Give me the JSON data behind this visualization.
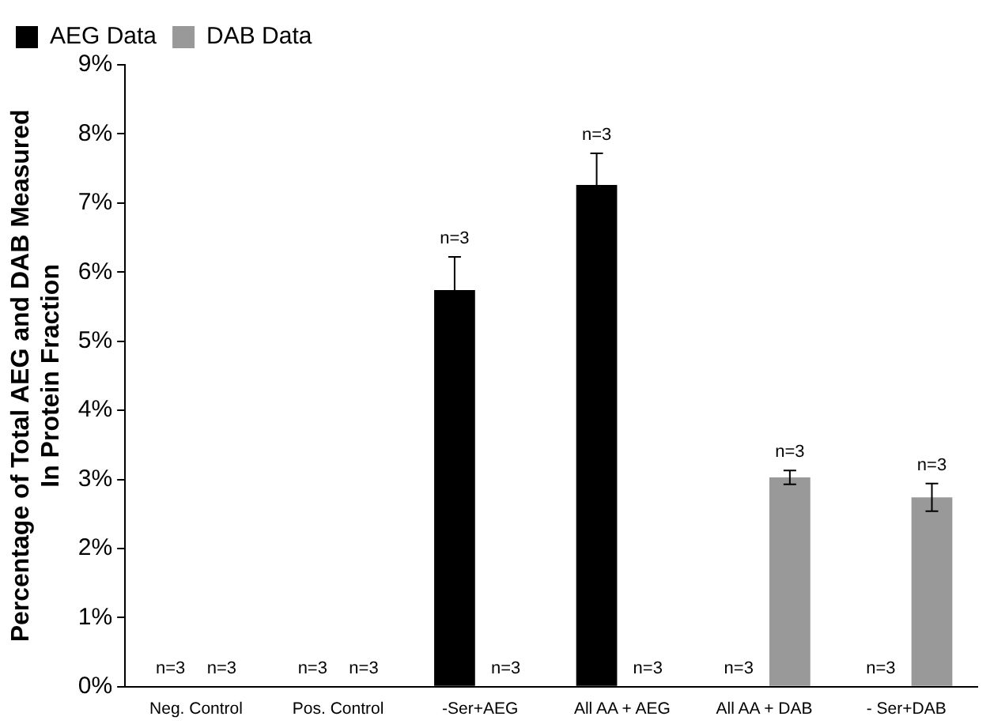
{
  "chart_data": {
    "type": "bar",
    "ylabel": "Percentage of Total AEG and DAB Measured\nIn Protein Fraction",
    "categories": [
      "Neg. Control",
      "Pos. Control",
      "-Ser+AEG",
      "All AA + AEG",
      "All AA + DAB",
      "- Ser+DAB"
    ],
    "series": [
      {
        "name": "AEG Data",
        "color": "#000000",
        "values": [
          0,
          0,
          5.74,
          7.26,
          0,
          0
        ],
        "errors": [
          null,
          null,
          0.48,
          0.46,
          null,
          null
        ]
      },
      {
        "name": "DAB Data",
        "color": "#999999",
        "values": [
          0,
          0,
          0,
          0,
          3.03,
          2.74
        ],
        "errors": [
          null,
          null,
          null,
          null,
          0.1,
          0.2
        ]
      }
    ],
    "annotations": [
      {
        "text": "n=3",
        "x": "Neg. Control",
        "y": 0
      },
      {
        "text": "n=3",
        "x": "Neg. Control",
        "y": 0
      },
      {
        "text": "n=3",
        "x": "Pos. Control",
        "y": 0
      },
      {
        "text": "n=3",
        "x": "Pos. Control",
        "y": 0
      },
      {
        "text": "n=3",
        "x": "-Ser+AEG",
        "y": 5.74
      },
      {
        "text": "n=3",
        "x": "-Ser+AEG",
        "y": 0
      },
      {
        "text": "n=3",
        "x": "All AA + AEG",
        "y": 7.26
      },
      {
        "text": "n=3",
        "x": "All AA + AEG",
        "y": 0
      },
      {
        "text": "n=3",
        "x": "All AA + DAB",
        "y": 0
      },
      {
        "text": "n=3",
        "x": "All AA + DAB",
        "y": 3.03
      },
      {
        "text": "n=3",
        "x": "- Ser+DAB",
        "y": 0
      },
      {
        "text": "n=3",
        "x": "- Ser+DAB",
        "y": 2.74
      }
    ],
    "ylim": [
      0,
      9
    ],
    "yticks": [
      {
        "value": 0,
        "label": "0%"
      },
      {
        "value": 1,
        "label": "1%"
      },
      {
        "value": 2,
        "label": "2%"
      },
      {
        "value": 3,
        "label": "3%"
      },
      {
        "value": 4,
        "label": "4%"
      },
      {
        "value": 5,
        "label": "5%"
      },
      {
        "value": 6,
        "label": "6%"
      },
      {
        "value": 7,
        "label": "7%"
      },
      {
        "value": 8,
        "label": "8%"
      },
      {
        "value": 9,
        "label": "9%"
      }
    ],
    "grid": false,
    "legend": "top left"
  }
}
